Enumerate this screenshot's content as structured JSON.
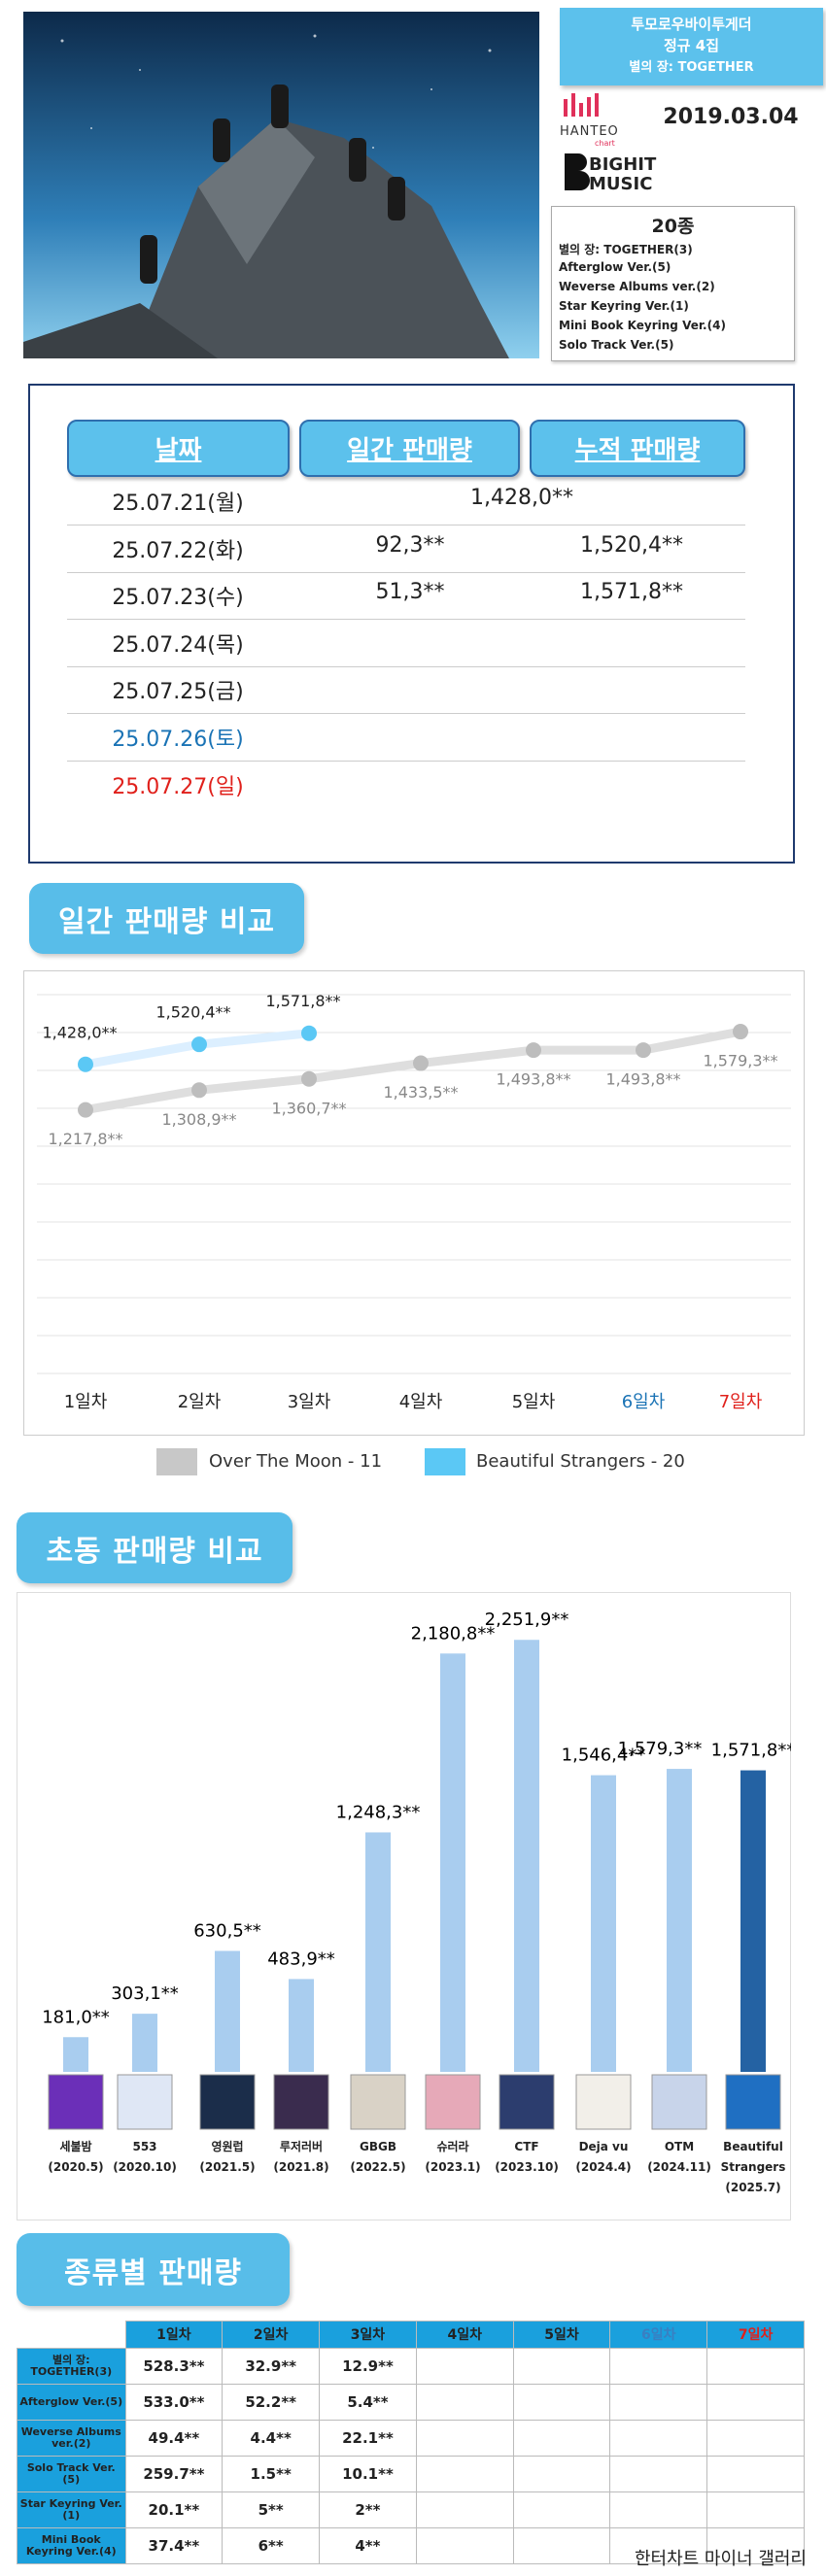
{
  "header": {
    "artist": "투모로우바이투게더",
    "release": "정규 4집",
    "album": "별의 장: TOGETHER",
    "chart_logo": "HANTEO",
    "chart_logo_sub": "chart",
    "date": "2019.03.04",
    "label_logo": [
      "BIGHIT",
      "MUSIC"
    ]
  },
  "versions": {
    "title": "20종",
    "items": [
      "별의 장: TOGETHER(3)",
      "Afterglow Ver.(5)",
      "Weverse Albums ver.(2)",
      "Star Keyring Ver.(1)",
      "Mini Book Keyring Ver.(4)",
      "Solo Track Ver.(5)"
    ]
  },
  "sales_table": {
    "headers": [
      "날짜",
      "일간 판매량",
      "누적 판매량"
    ],
    "rows": [
      {
        "date": "25.07.21(월)",
        "total": "1,428,0**"
      },
      {
        "date": "25.07.22(화)",
        "daily": "92,3**",
        "cumulative": "1,520,4**"
      },
      {
        "date": "25.07.23(수)",
        "daily": "51,3**",
        "cumulative": "1,571,8**"
      },
      {
        "date": "25.07.24(목)"
      },
      {
        "date": "25.07.25(금)"
      },
      {
        "date": "25.07.26(토)",
        "color": "#1a73b5"
      },
      {
        "date": "25.07.27(일)",
        "color": "#e0201b"
      }
    ]
  },
  "chart_data": [
    {
      "type": "line",
      "title": "일간 판매량 비교",
      "categories": [
        "1일차",
        "2일차",
        "3일차",
        "4일차",
        "5일차",
        "6일차",
        "7일차"
      ],
      "category_colors": [
        "#222222",
        "#222222",
        "#222222",
        "#222222",
        "#222222",
        "#1a73b5",
        "#e0201b"
      ],
      "series": [
        {
          "name": "Over The Moon - 11",
          "color": "#c8c8c8",
          "values": [
            1217.8,
            1308.9,
            1360.7,
            1433.5,
            1493.8,
            1493.8,
            1579.3
          ],
          "value_labels": [
            "1,217,8**",
            "1,308,9**",
            "1,360,7**",
            "1,433,5**",
            "1,493,8**",
            "1,493,8**",
            "1,579,3**"
          ]
        },
        {
          "name": "Beautiful Strangers - 20",
          "color": "#5bc8f5",
          "values": [
            1428.0,
            1520.4,
            1571.8,
            null,
            null,
            null,
            null
          ],
          "value_labels": [
            "1,428,0**",
            "1,520,4**",
            "1,571,8**",
            null,
            null,
            null,
            null
          ]
        }
      ],
      "ylim": [
        0,
        1750
      ],
      "grid": true
    },
    {
      "type": "bar",
      "title": "초동 판매량 비교",
      "categories": [
        "세불밤",
        "553",
        "영원럽",
        "루저러버",
        "GBGB",
        "슈러라",
        "CTF",
        "Deja vu",
        "OTM",
        "Beautiful Strangers"
      ],
      "dates": [
        "(2020.5)",
        "(2020.10)",
        "(2021.5)",
        "(2021.8)",
        "(2022.5)",
        "(2023.1)",
        "(2023.10)",
        "(2024.4)",
        "(2024.11)",
        "(2025.7)"
      ],
      "values": [
        181.0,
        303.1,
        630.5,
        483.9,
        1248.3,
        2180.8,
        2251.9,
        1546.4,
        1579.3,
        1571.8
      ],
      "value_labels": [
        "181,0**",
        "303,1**",
        "630,5**",
        "483,9**",
        "1,248,3**",
        "2,180,8**",
        "2,251,9**",
        "1,546,4**",
        "1,579,3**",
        "1,571,8**"
      ],
      "colors": [
        "#a9cdef",
        "#a9cdef",
        "#a9cdef",
        "#a9cdef",
        "#a9cdef",
        "#a9cdef",
        "#a9cdef",
        "#a9cdef",
        "#a9cdef",
        "#2462a3"
      ],
      "ylim": [
        0,
        2400
      ]
    }
  ],
  "type_table": {
    "title": "종류별 판매량",
    "headers": [
      "1일차",
      "2일차",
      "3일차",
      "4일차",
      "5일차",
      "6일차",
      "7일차"
    ],
    "header_colors": [
      "#222222",
      "#222222",
      "#222222",
      "#222222",
      "#222222",
      "#3a7fc1",
      "#e0201b"
    ],
    "rows": [
      {
        "name": "별의 장: TOGETHER(3)",
        "cells": [
          "528.3**",
          "32.9**",
          "12.9**"
        ]
      },
      {
        "name": "Afterglow Ver.(5)",
        "cells": [
          "533.0**",
          "52.2**",
          "5.4**"
        ]
      },
      {
        "name": "Weverse Albums ver.(2)",
        "cells": [
          "49.4**",
          "4.4**",
          "22.1**"
        ]
      },
      {
        "name": "Solo Track Ver.(5)",
        "cells": [
          "259.7**",
          "1.5**",
          "10.1**"
        ]
      },
      {
        "name": "Star Keyring Ver.(1)",
        "cells": [
          "20.1**",
          "5**",
          "2**"
        ]
      },
      {
        "name": "Mini Book Keyring Ver.(4)",
        "cells": [
          "37.4**",
          "6**",
          "4**"
        ]
      }
    ]
  },
  "footer": "한터차트 마이너 갤러리"
}
